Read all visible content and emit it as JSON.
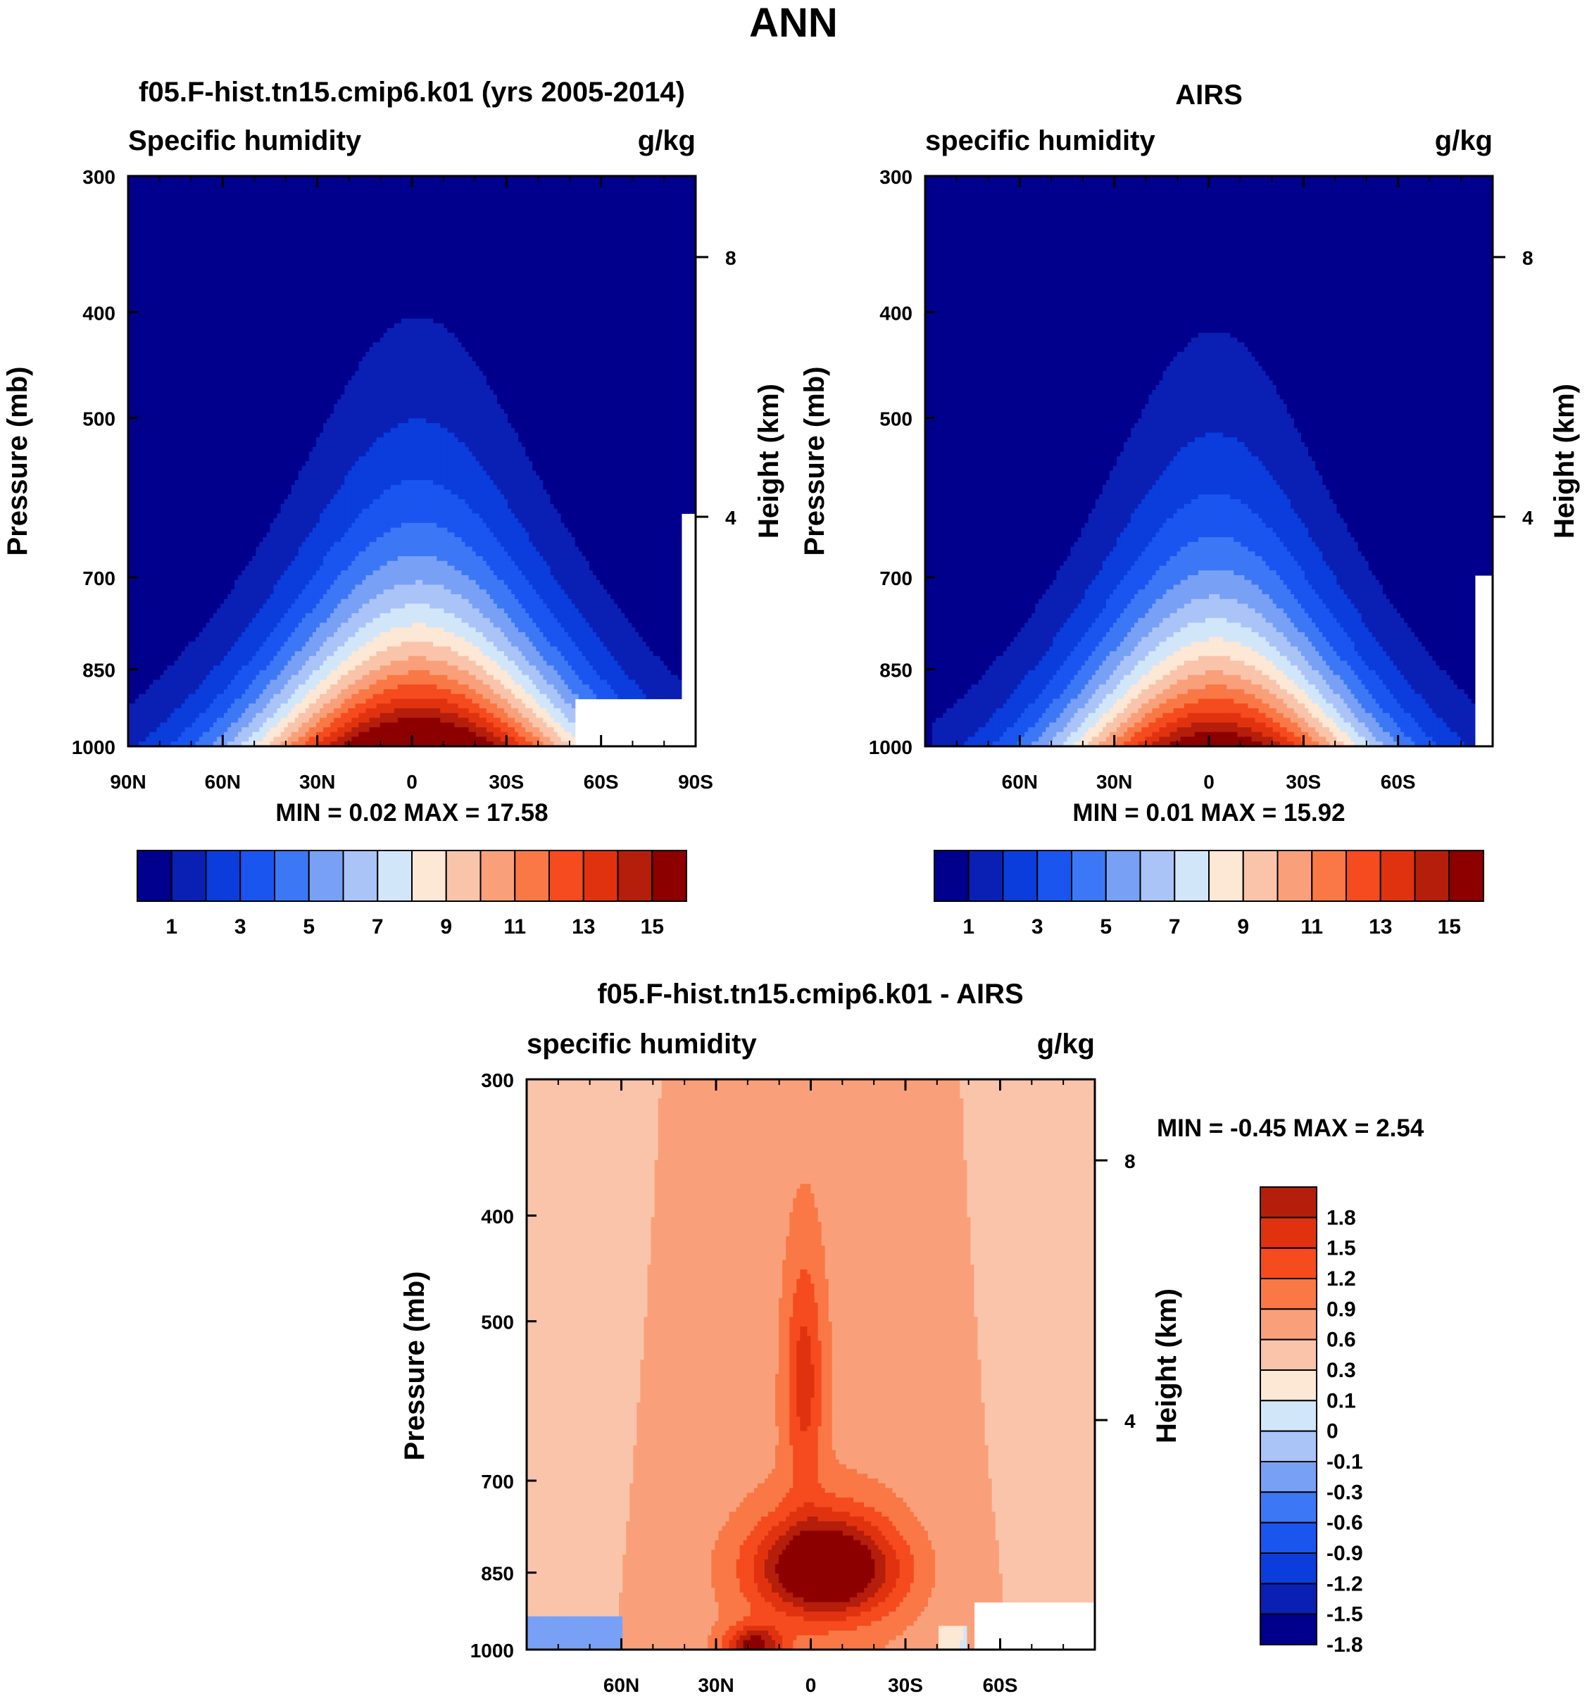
{
  "page": {
    "title": "ANN"
  },
  "colors": {
    "abs_levels": [
      "#00008c",
      "#0a20b4",
      "#0a3ddc",
      "#1a55f0",
      "#3c78f5",
      "#78a0f5",
      "#aac4f8",
      "#d2e6fa",
      "#fde7d5",
      "#f9c4aa",
      "#f9a07a",
      "#f97846",
      "#f54b1e",
      "#e13210",
      "#b41e0a",
      "#8c0000"
    ],
    "diff_levels": [
      "#00008c",
      "#0a20b4",
      "#0a3ddc",
      "#1a55f0",
      "#3c78f5",
      "#78a0f5",
      "#aac4f8",
      "#d2e6fa",
      "#fde7d5",
      "#f9c4aa",
      "#f9a07a",
      "#f97846",
      "#f54b1e",
      "#e13210",
      "#b41e0a",
      "#8c0000"
    ]
  },
  "chart_data": [
    {
      "type": "heatmap",
      "title": "f05.F-hist.tn15.cmip6.k01 (yrs 2005-2014)",
      "left_label": "Specific humidity",
      "units": "g/kg",
      "ylabel": "Pressure (mb)",
      "ylabel_right": "Height (km)",
      "x_ticks": [
        "90N",
        "60N",
        "30N",
        "0",
        "30S",
        "60S",
        "90S"
      ],
      "y_ticks": [
        "300",
        "400",
        "500",
        "700",
        "850",
        "1000"
      ],
      "y_right_ticks": [
        "8",
        "4"
      ],
      "min_max": "MIN =   0.02  MAX =  17.58",
      "surface_peak": 17.58,
      "width_scale": 1.0,
      "colorbar_labels": [
        "1",
        "3",
        "5",
        "7",
        "9",
        "11",
        "13",
        "15"
      ]
    },
    {
      "type": "heatmap",
      "title": "AIRS",
      "left_label": "specific humidity",
      "units": "g/kg",
      "ylabel": "Pressure (mb)",
      "ylabel_right": "Height (km)",
      "x_ticks": [
        "60N",
        "30N",
        "0",
        "30S",
        "60S"
      ],
      "y_ticks": [
        "300",
        "400",
        "500",
        "700",
        "850",
        "1000"
      ],
      "y_right_ticks": [
        "8",
        "4"
      ],
      "min_max": "MIN =   0.01  MAX =  15.92",
      "surface_peak": 15.92,
      "width_scale": 0.92,
      "colorbar_labels": [
        "1",
        "3",
        "5",
        "7",
        "9",
        "11",
        "13",
        "15"
      ]
    },
    {
      "type": "heatmap",
      "title": "f05.F-hist.tn15.cmip6.k01 - AIRS",
      "left_label": "specific humidity",
      "units": "g/kg",
      "ylabel": "Pressure (mb)",
      "ylabel_right": "Height (km)",
      "x_ticks": [
        "60N",
        "30N",
        "0",
        "30S",
        "60S"
      ],
      "y_ticks": [
        "300",
        "400",
        "500",
        "700",
        "850",
        "1000"
      ],
      "y_right_ticks": [
        "8",
        "4"
      ],
      "min_max": "MIN =  -0.45  MAX =   2.54",
      "colorbar_labels": [
        "1.8",
        "1.5",
        "1.2",
        "0.9",
        "0.6",
        "0.3",
        "0.1",
        "0",
        "-0.1",
        "-0.3",
        "-0.6",
        "-0.9",
        "-1.2",
        "-1.5",
        "-1.8"
      ]
    }
  ]
}
